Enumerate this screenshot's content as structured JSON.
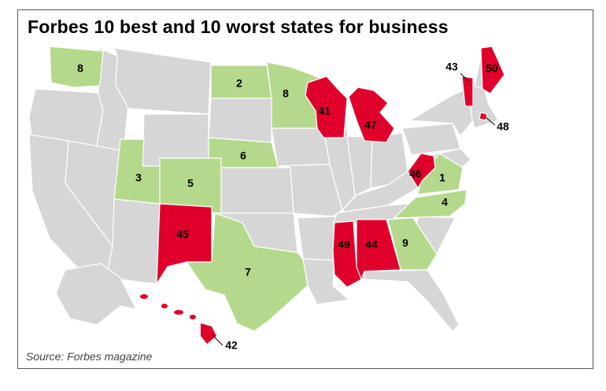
{
  "title": "Forbes 10 best and 10 worst states for business",
  "source": "Source: Forbes magazine",
  "colors": {
    "best": "#b5d98c",
    "worst": "#e0002b",
    "other": "#d6d6d6"
  },
  "states": {
    "washington": "8",
    "north_dakota": "2",
    "minnesota": "8",
    "wisconsin": "41",
    "michigan": "47",
    "vermont": "43",
    "maine": "50",
    "rhode_island": "48",
    "nebraska": "6",
    "utah": "3",
    "colorado": "5",
    "west_virginia": "46",
    "virginia": "1",
    "north_carolina": "4",
    "new_mexico": "45",
    "mississippi": "49",
    "alabama": "44",
    "georgia": "9",
    "texas": "7",
    "hawaii": "42"
  }
}
